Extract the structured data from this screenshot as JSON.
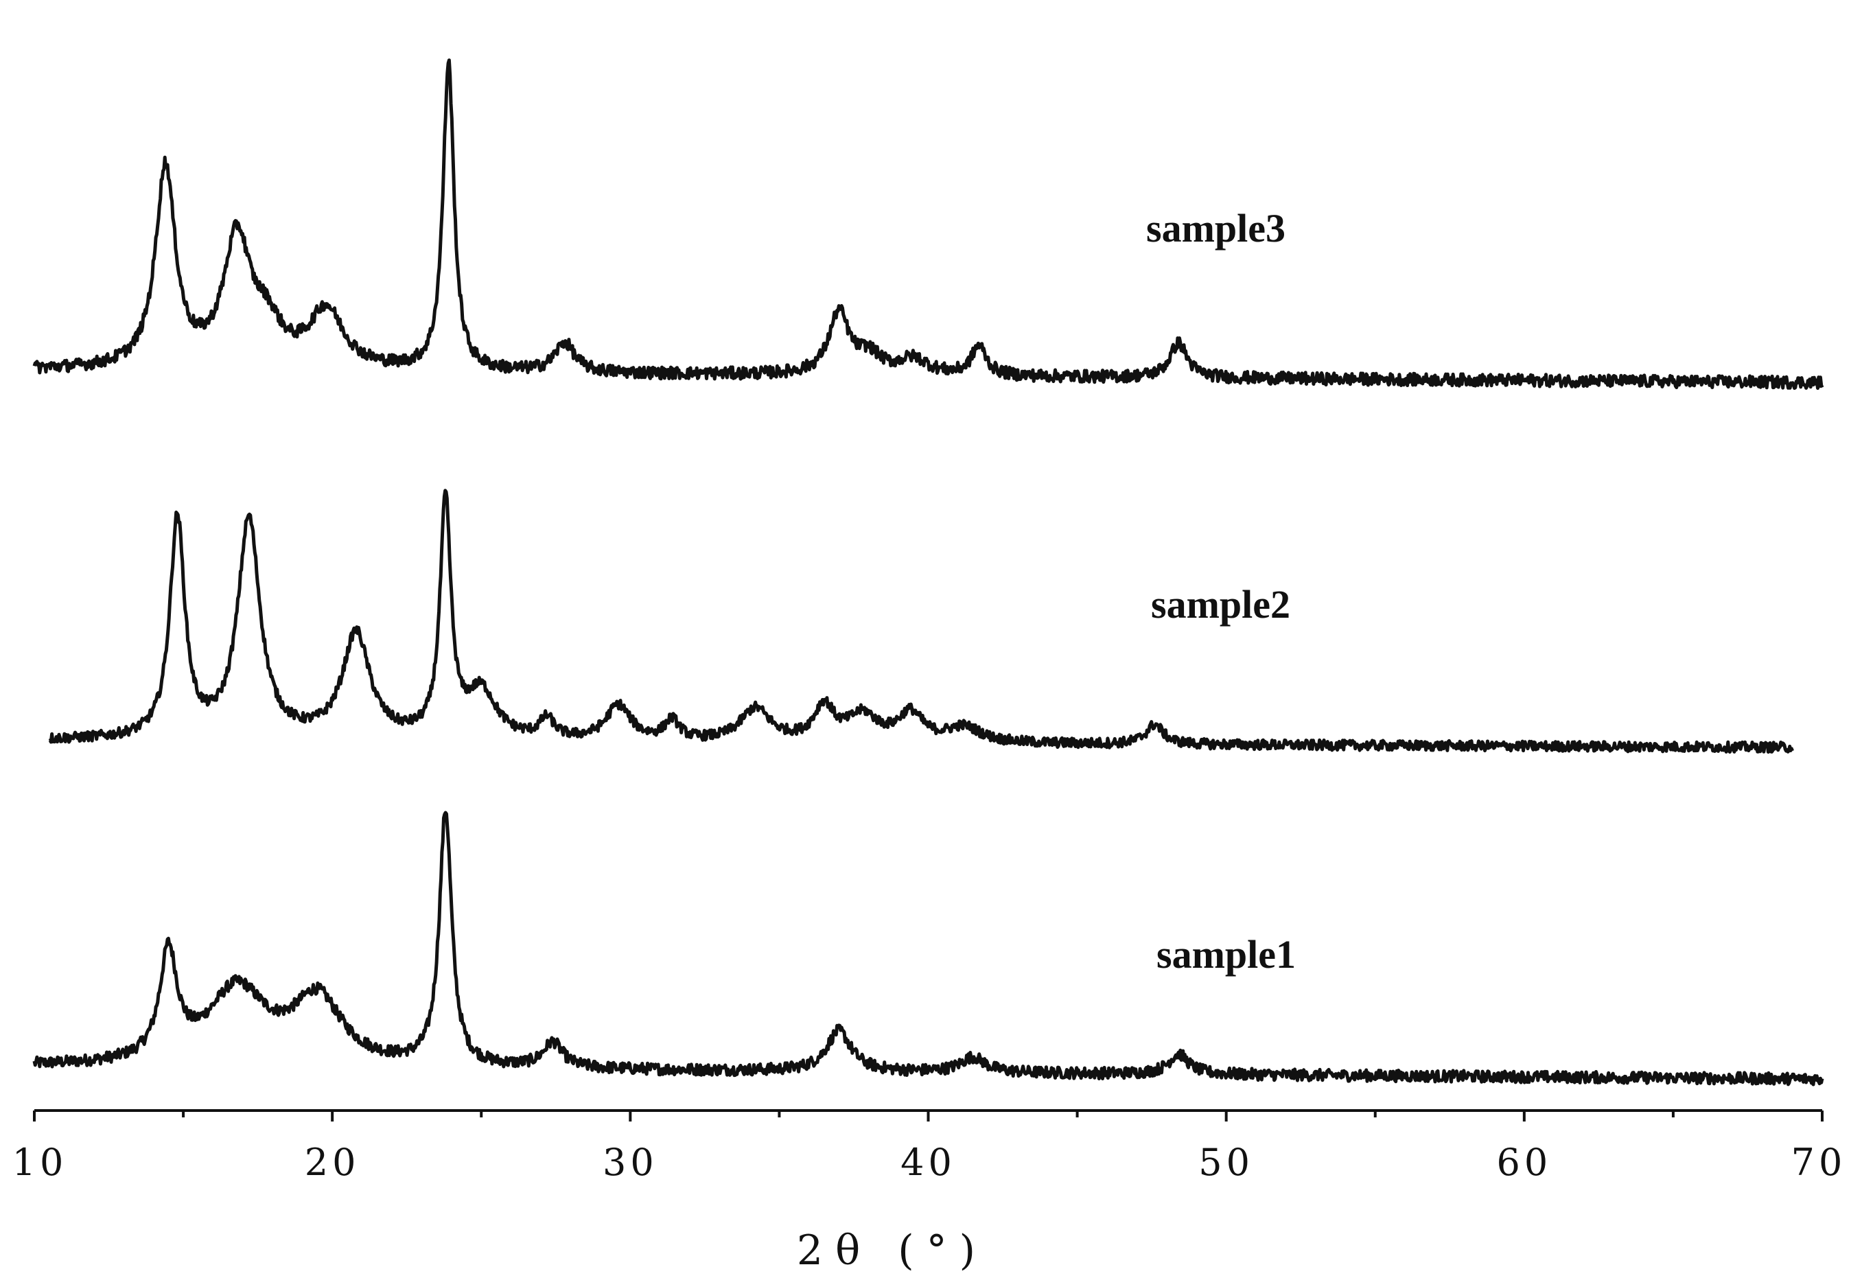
{
  "chart_data": {
    "type": "line",
    "title": "",
    "xlabel": "2θ (°)",
    "ylabel": "",
    "xlim": [
      10,
      70
    ],
    "x_ticks": [
      10,
      20,
      30,
      40,
      50,
      60,
      70
    ],
    "x_tick_labels": [
      "10",
      "20",
      "30",
      "40",
      "50",
      "60",
      "70"
    ],
    "y_axis_shown": false,
    "grid": false,
    "legend": "inline labels",
    "series": [
      {
        "name": "sample1",
        "x_range": [
          10,
          70
        ],
        "baseline": 7,
        "peaks": [
          {
            "x": 14.5,
            "y": 42,
            "w": 0.35
          },
          {
            "x": 16.8,
            "y": 30,
            "w": 1.2
          },
          {
            "x": 19.5,
            "y": 26,
            "w": 1.0
          },
          {
            "x": 23.8,
            "y": 100,
            "w": 0.25
          },
          {
            "x": 27.4,
            "y": 10,
            "w": 0.4
          },
          {
            "x": 37.0,
            "y": 16,
            "w": 0.5
          },
          {
            "x": 41.5,
            "y": 6,
            "w": 0.5
          },
          {
            "x": 48.4,
            "y": 8,
            "w": 0.4
          }
        ]
      },
      {
        "name": "sample2",
        "x_range": [
          10.5,
          69
        ],
        "baseline": 5,
        "peaks": [
          {
            "x": 14.8,
            "y": 100,
            "w": 0.3
          },
          {
            "x": 17.2,
            "y": 100,
            "w": 0.45
          },
          {
            "x": 20.8,
            "y": 48,
            "w": 0.55
          },
          {
            "x": 23.8,
            "y": 107,
            "w": 0.22
          },
          {
            "x": 25.0,
            "y": 22,
            "w": 0.6
          },
          {
            "x": 27.2,
            "y": 9,
            "w": 0.3
          },
          {
            "x": 29.6,
            "y": 16,
            "w": 0.5
          },
          {
            "x": 31.4,
            "y": 9,
            "w": 0.3
          },
          {
            "x": 34.2,
            "y": 15,
            "w": 0.6
          },
          {
            "x": 36.5,
            "y": 16,
            "w": 0.4
          },
          {
            "x": 37.8,
            "y": 12,
            "w": 0.6
          },
          {
            "x": 39.4,
            "y": 13,
            "w": 0.5
          },
          {
            "x": 41.2,
            "y": 7,
            "w": 0.7
          },
          {
            "x": 47.6,
            "y": 9,
            "w": 0.35
          }
        ]
      },
      {
        "name": "sample3",
        "x_range": [
          10,
          70
        ],
        "baseline": 4,
        "peaks": [
          {
            "x": 14.4,
            "y": 75,
            "w": 0.4
          },
          {
            "x": 16.8,
            "y": 48,
            "w": 0.55
          },
          {
            "x": 17.8,
            "y": 14,
            "w": 0.6
          },
          {
            "x": 19.8,
            "y": 22,
            "w": 0.7
          },
          {
            "x": 23.9,
            "y": 115,
            "w": 0.22
          },
          {
            "x": 27.8,
            "y": 11,
            "w": 0.4
          },
          {
            "x": 37.0,
            "y": 23,
            "w": 0.4
          },
          {
            "x": 38.0,
            "y": 7,
            "w": 0.5
          },
          {
            "x": 39.5,
            "y": 6,
            "w": 0.6
          },
          {
            "x": 41.7,
            "y": 11,
            "w": 0.3
          },
          {
            "x": 48.4,
            "y": 13,
            "w": 0.35
          }
        ]
      }
    ]
  }
}
